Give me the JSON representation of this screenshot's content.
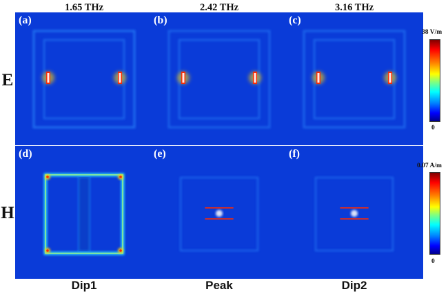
{
  "frequencies": [
    "1.65 THz",
    "2.42 THz",
    "3.16 THz"
  ],
  "rows": [
    "E",
    "H"
  ],
  "columns": [
    "Dip1",
    "Peak",
    "Dip2"
  ],
  "panels": [
    "(a)",
    "(b)",
    "(c)",
    "(d)",
    "(e)",
    "(f)"
  ],
  "colorbars": {
    "E": {
      "max": "38 V/m",
      "min": "0"
    },
    "H": {
      "max": "0.07 A/m",
      "min": "0"
    }
  },
  "colors": {
    "background": "#0a3bd8",
    "mid": "#2f8fff",
    "hot": "#ff2a00",
    "core": "#ffff40"
  }
}
